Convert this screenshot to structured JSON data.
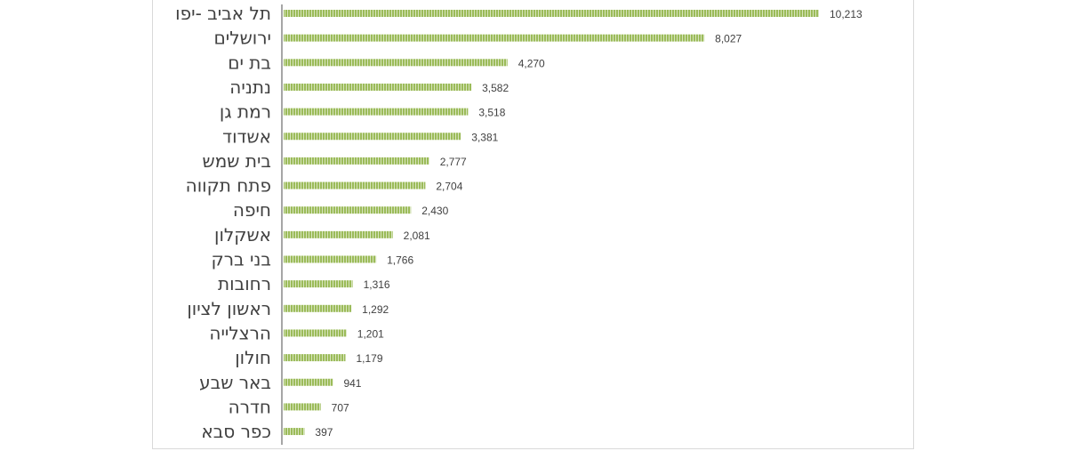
{
  "chart_data": {
    "type": "bar",
    "orientation": "horizontal",
    "title": "",
    "xlabel": "",
    "ylabel": "",
    "xlim": [
      0,
      10213
    ],
    "grid": false,
    "categories": [
      "תל אביב -יפו",
      "ירושלים",
      "בת ים",
      "נתניה",
      "רמת גן",
      "אשדוד",
      "בית שמש",
      "פתח תקווה",
      "חיפה",
      "אשקלון",
      "בני ברק",
      "רחובות",
      "ראשון לציון",
      "הרצלייה",
      "חולון",
      "באר שבע",
      "חדרה",
      "כפר סבא"
    ],
    "values": [
      10213,
      8027,
      4270,
      3582,
      3518,
      3381,
      2777,
      2704,
      2430,
      2081,
      1766,
      1316,
      1292,
      1201,
      1179,
      941,
      707,
      397
    ],
    "value_labels": [
      "10,213",
      "8,027",
      "4,270",
      "3,582",
      "3,518",
      "3,381",
      "2,777",
      "2,704",
      "2,430",
      "2,081",
      "1,766",
      "1,316",
      "1,292",
      "1,201",
      "1,179",
      "941",
      "707",
      "397"
    ],
    "colors": {
      "bar": "#9bbb59",
      "bar_stripe": "#d7e4bd",
      "axis": "#a6a6a6"
    }
  }
}
